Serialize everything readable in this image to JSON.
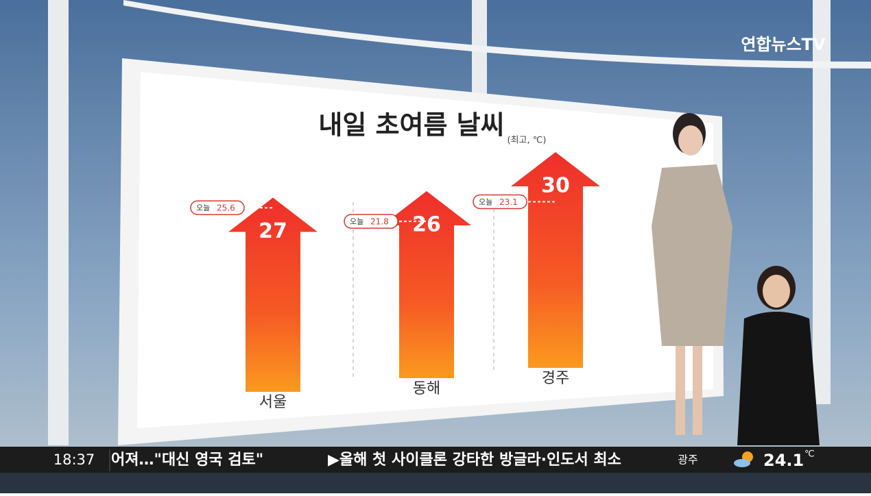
{
  "chart_data": {
    "type": "arrow",
    "title": "내일 초여름 날씨",
    "subtitle": "(최고, ℃)",
    "categories": [
      "서울",
      "동해",
      "경주"
    ],
    "values": [
      27,
      26,
      30
    ],
    "today": {
      "label": "오늘",
      "values": [
        25.6,
        21.8,
        23.1
      ]
    }
  },
  "broadcast": {
    "logo": "연합뉴스TV",
    "time": "18:37",
    "ticker": [
      "어져…\"대신 영국 검토\"",
      "▶올해 첫 사이클론 강타한 방글라·인도서 최소"
    ],
    "weather": {
      "city": "광주",
      "temp": 24.1,
      "unit": "℃"
    }
  }
}
